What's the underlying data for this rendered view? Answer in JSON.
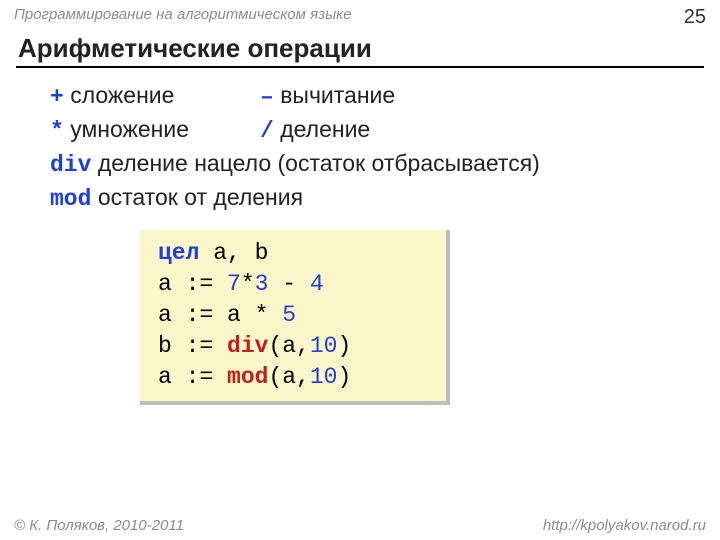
{
  "header": {
    "course": "Программирование на алгоритмическом языке",
    "page_number": "25"
  },
  "title": "Арифметические операции",
  "operations": {
    "row1": {
      "sym1": "+",
      "label1": "сложение",
      "sym2": "–",
      "label2": "вычитание"
    },
    "row2": {
      "sym1": "*",
      "label1": "умножение",
      "sym2": "/",
      "label2": "деление"
    },
    "line3": {
      "sym": "div",
      "label": "деление нацело (остаток отбрасывается)"
    },
    "line4": {
      "sym": "mod",
      "label": "остаток от деления"
    }
  },
  "code": {
    "l1": {
      "kw": "цел",
      "rest": " a, b"
    },
    "l2": {
      "pre": "a := ",
      "n1": "7",
      "op1": "*",
      "n2": "3",
      "op2": " - ",
      "n3": "4"
    },
    "l3": {
      "pre": "a := a * ",
      "n1": "5"
    },
    "l4": {
      "pre": "b := ",
      "fn": "div",
      "open": "(a,",
      "n1": "10",
      "close": ")"
    },
    "l5": {
      "pre": "a := ",
      "fn": "mod",
      "open": "(a,",
      "n1": "10",
      "close": ")"
    }
  },
  "footer": {
    "copyright": "© К. Поляков, 2010-2011",
    "url": "http://kpolyakov.narod.ru"
  },
  "colors": {
    "keyword_blue": "#1e3fda",
    "keyword_red": "#c11e1e",
    "code_bg": "#fcf6cb",
    "shadow": "#bdbdbd",
    "muted_text": "#8c8c8c",
    "text": "#222222"
  }
}
